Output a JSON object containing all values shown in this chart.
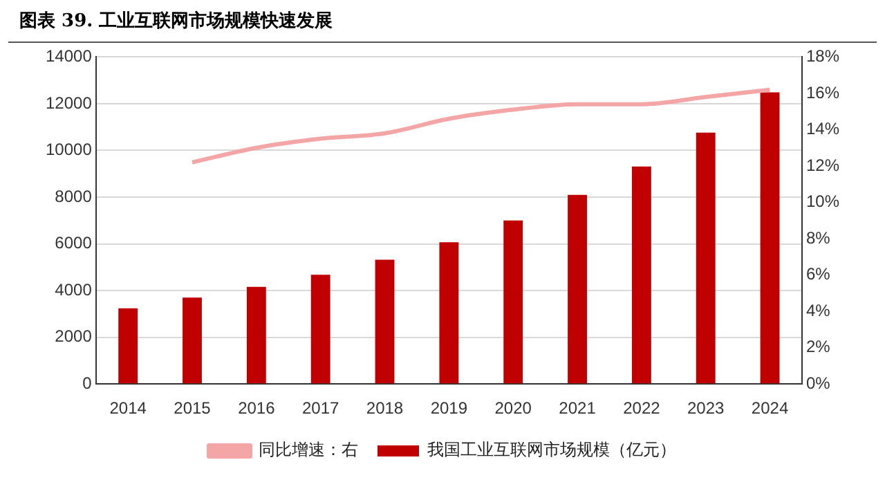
{
  "chart_data": {
    "type": "bar",
    "title": "图表 39. 工业互联网市场规模快速发展",
    "categories": [
      "2014",
      "2015",
      "2016",
      "2017",
      "2018",
      "2019",
      "2020",
      "2021",
      "2022",
      "2023",
      "2024"
    ],
    "series": [
      {
        "name": "我国工业互联网市场规模（亿元）",
        "color": "#c00000",
        "values": [
          3240,
          3700,
          4160,
          4680,
          5320,
          6070,
          7000,
          8100,
          9310,
          10760,
          12490
        ]
      },
      {
        "name": "同比增速：右",
        "type": "line",
        "axis": "y2",
        "color": "#f4a6a6",
        "values": [
          null,
          12.2,
          13.0,
          13.5,
          13.8,
          14.6,
          15.1,
          15.4,
          15.4,
          15.8,
          16.2
        ]
      }
    ],
    "ylim": [
      0,
      14000
    ],
    "yticks": [
      0,
      2000,
      4000,
      6000,
      8000,
      10000,
      12000,
      14000
    ],
    "y2lim": [
      0,
      18
    ],
    "y2ticks": [
      {
        "value": 0,
        "label": "0%"
      },
      {
        "value": 2,
        "label": "2%"
      },
      {
        "value": 4,
        "label": "4%"
      },
      {
        "value": 6,
        "label": "6%"
      },
      {
        "value": 8,
        "label": "8%"
      },
      {
        "value": 10,
        "label": "10%"
      },
      {
        "value": 12,
        "label": "12%"
      },
      {
        "value": 14,
        "label": "14%"
      },
      {
        "value": 16,
        "label": "16%"
      },
      {
        "value": 18,
        "label": "18%"
      }
    ],
    "grid": "y",
    "legend": "bottom",
    "marker": "none"
  }
}
